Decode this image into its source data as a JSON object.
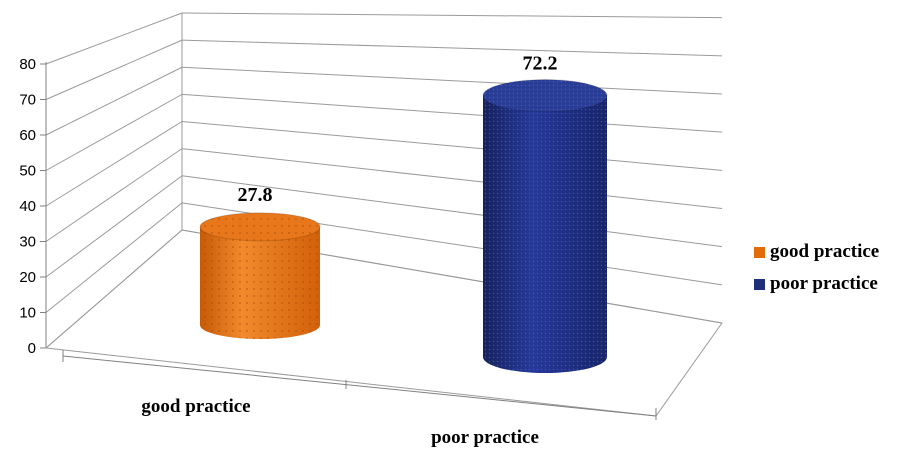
{
  "chart_data": {
    "type": "bar",
    "categories": [
      "good practice",
      "poor practice"
    ],
    "values": [
      27.8,
      72.2
    ],
    "data_labels": [
      "27.8",
      "72.2"
    ],
    "ylim": [
      0,
      80
    ],
    "yticks": [
      "0",
      "10",
      "20",
      "30",
      "40",
      "50",
      "60",
      "70",
      "80"
    ],
    "legend": [
      {
        "label": "good practice",
        "color": "#e36c0a"
      },
      {
        "label": "poor practice",
        "color": "#1f2f7a"
      }
    ],
    "legend_position": "right",
    "grid": true,
    "style": "3d-cylinder"
  }
}
